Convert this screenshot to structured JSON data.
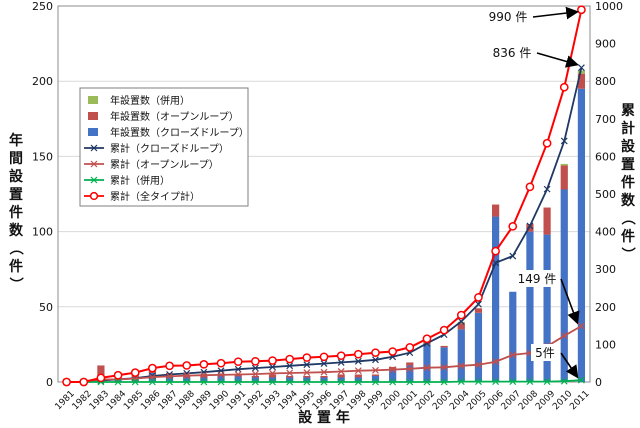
{
  "chart_data": {
    "type": "bar",
    "xlabel": "設置年",
    "ylabel_left": "年間設置件数（件）",
    "ylabel_right": "累計設置件数（件）",
    "ylim_left": [
      0,
      250
    ],
    "yticks_left": [
      0,
      50,
      100,
      150,
      200,
      250
    ],
    "ylim_right": [
      0,
      1000
    ],
    "yticks_right": [
      0,
      100,
      200,
      300,
      400,
      500,
      600,
      700,
      800,
      900,
      1000
    ],
    "grid": true,
    "legend_position": "left",
    "categories": [
      "1981",
      "1982",
      "1983",
      "1984",
      "1985",
      "1986",
      "1987",
      "1988",
      "1989",
      "1990",
      "1991",
      "1992",
      "1993",
      "1994",
      "1995",
      "1996",
      "1997",
      "1998",
      "1999",
      "2000",
      "2001",
      "2002",
      "2003",
      "2004",
      "2005",
      "2006",
      "2007",
      "2008",
      "2009",
      "2010",
      "2011"
    ],
    "bar_series": [
      {
        "name": "年設置数（クローズドループ）",
        "color": "#4472c4",
        "axis": "left",
        "values": [
          0,
          0,
          4,
          3,
          3,
          6,
          4,
          3,
          3,
          4,
          4,
          3,
          3,
          3,
          3,
          3,
          3,
          3,
          4,
          8,
          11,
          25,
          23,
          35,
          46,
          110,
          60,
          100,
          98,
          128,
          195
        ]
      },
      {
        "name": "年設置数（オープンループ）",
        "color": "#c0504d",
        "axis": "left",
        "values": [
          0,
          0,
          7,
          0,
          2,
          4,
          2,
          2,
          1,
          1,
          1,
          1,
          2,
          1,
          1,
          1,
          2,
          2,
          1,
          2,
          2,
          3,
          1,
          4,
          3,
          8,
          0,
          5,
          18,
          16,
          10
        ]
      },
      {
        "name": "年設置数（併用）",
        "color": "#9bbb59",
        "axis": "left",
        "values": [
          0,
          0,
          0,
          0,
          0,
          0,
          0,
          0,
          0,
          0,
          0,
          0,
          0,
          0,
          0,
          0,
          0,
          0,
          0,
          0,
          0,
          0,
          0,
          1,
          0,
          0,
          0,
          0,
          0,
          1,
          2
        ]
      }
    ],
    "line_series": [
      {
        "name": "累計（クローズドループ）",
        "color": "#1f3864",
        "marker": "x",
        "axis": "right",
        "values": [
          0,
          0,
          4,
          7,
          10,
          16,
          20,
          23,
          26,
          30,
          34,
          37,
          40,
          43,
          46,
          49,
          52,
          55,
          59,
          67,
          78,
          103,
          126,
          161,
          207,
          317,
          335,
          415,
          513,
          641,
          836
        ]
      },
      {
        "name": "累計（オープンループ）",
        "color": "#c0504d",
        "marker": "x",
        "axis": "right",
        "values": [
          0,
          0,
          7,
          7,
          9,
          13,
          15,
          17,
          18,
          19,
          20,
          21,
          23,
          24,
          25,
          26,
          28,
          30,
          31,
          33,
          35,
          38,
          39,
          43,
          46,
          54,
          72,
          77,
          95,
          123,
          149
        ]
      },
      {
        "name": "累計（併用）",
        "color": "#00b050",
        "marker": "x",
        "axis": "right",
        "values": [
          0,
          0,
          0,
          0,
          0,
          0,
          0,
          0,
          0,
          0,
          0,
          0,
          0,
          0,
          0,
          0,
          0,
          0,
          0,
          0,
          0,
          0,
          0,
          1,
          1,
          1,
          1,
          1,
          1,
          2,
          5
        ]
      },
      {
        "name": "累計（全タイプ計）",
        "color": "#ff0000",
        "marker": "circle",
        "axis": "right",
        "values": [
          0,
          0,
          11,
          18,
          25,
          37,
          43,
          44,
          47,
          50,
          54,
          55,
          57,
          61,
          65,
          67,
          70,
          74,
          78,
          81,
          92,
          115,
          138,
          178,
          225,
          348,
          414,
          519,
          635,
          784,
          990
        ]
      }
    ],
    "annotations": [
      {
        "text": "990 件",
        "category": "2011",
        "value": 990
      },
      {
        "text": "836 件",
        "category": "2011",
        "value": 836
      },
      {
        "text": "149 件",
        "category": "2011",
        "value": 149
      },
      {
        "text": "5件",
        "category": "2011",
        "value": 5
      }
    ],
    "legend_order": [
      "年設置数（併用）",
      "年設置数（オープンループ）",
      "年設置数（クローズドループ）",
      "累計（クローズドループ）",
      "累計（オープンループ）",
      "累計（併用）",
      "累計（全タイプ計）"
    ]
  }
}
